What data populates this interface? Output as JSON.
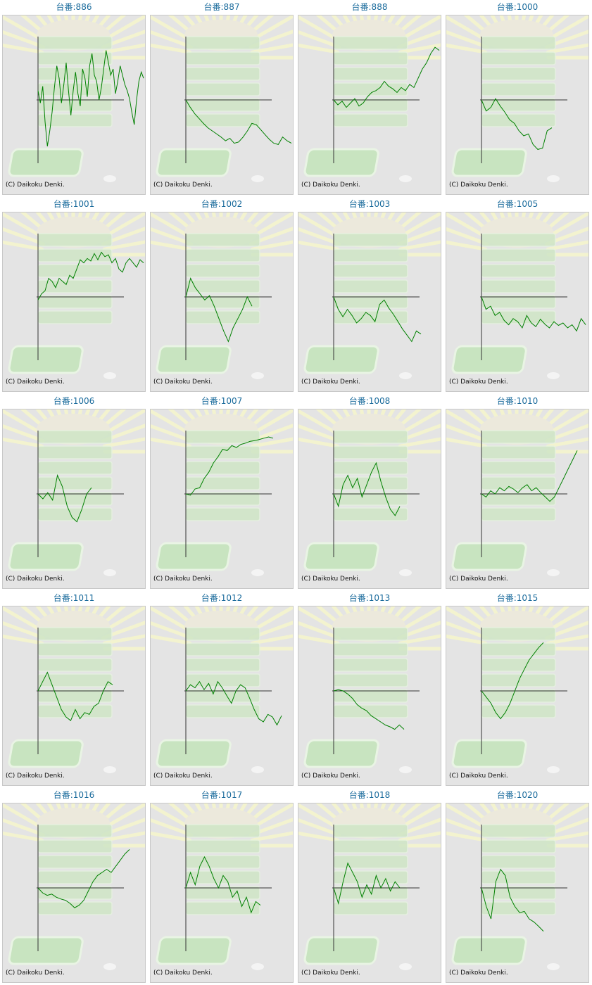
{
  "copyright": "(C) Daikoku Denki.",
  "colors": {
    "line": "#008000",
    "axis": "#333333",
    "title": "#1a6b9c",
    "panel": "#e4e4e4"
  },
  "chart_data": [
    {
      "type": "line",
      "title": "台番:886",
      "y": [
        0.15,
        -0.05,
        0.22,
        -0.35,
        -0.75,
        -0.5,
        -0.2,
        0.2,
        0.55,
        0.35,
        -0.05,
        0.25,
        0.6,
        0.15,
        -0.25,
        0.15,
        0.45,
        0.1,
        -0.1,
        0.5,
        0.35,
        0.05,
        0.55,
        0.75,
        0.4,
        0.3,
        0.0,
        0.2,
        0.5,
        0.8,
        0.6,
        0.4,
        0.5,
        0.1,
        0.3,
        0.55,
        0.4,
        0.25,
        0.15,
        0.02,
        -0.2,
        -0.4,
        0.0,
        0.3,
        0.45,
        0.35
      ]
    },
    {
      "type": "line",
      "title": "台番:887",
      "y": [
        0.0,
        -0.12,
        -0.22,
        -0.3,
        -0.38,
        -0.45,
        -0.5,
        -0.55,
        -0.6,
        -0.66,
        -0.62,
        -0.7,
        -0.68,
        -0.6,
        -0.5,
        -0.38,
        -0.4,
        -0.48,
        -0.56,
        -0.64,
        -0.7,
        -0.72,
        -0.6,
        -0.66,
        -0.7
      ]
    },
    {
      "type": "line",
      "title": "台番:888",
      "y": [
        0.0,
        -0.08,
        -0.02,
        -0.12,
        -0.05,
        0.02,
        -0.1,
        -0.05,
        0.05,
        0.12,
        0.15,
        0.2,
        0.3,
        0.22,
        0.18,
        0.12,
        0.2,
        0.15,
        0.25,
        0.2,
        0.35,
        0.5,
        0.6,
        0.75,
        0.85,
        0.8
      ]
    },
    {
      "type": "line",
      "title": "台番:1000",
      "y": [
        0.0,
        -0.18,
        -0.12,
        0.02,
        -0.1,
        -0.2,
        -0.32,
        -0.38,
        -0.5,
        -0.58,
        -0.55,
        -0.72,
        -0.8,
        -0.78,
        -0.5,
        -0.45
      ]
    },
    {
      "type": "line",
      "title": "台番:1001",
      "y": [
        -0.05,
        0.05,
        0.1,
        0.3,
        0.25,
        0.15,
        0.3,
        0.25,
        0.2,
        0.35,
        0.3,
        0.45,
        0.6,
        0.55,
        0.62,
        0.58,
        0.7,
        0.6,
        0.72,
        0.65,
        0.68,
        0.55,
        0.62,
        0.45,
        0.4,
        0.55,
        0.62,
        0.55,
        0.48,
        0.6,
        0.55
      ]
    },
    {
      "type": "line",
      "title": "台番:1002",
      "y": [
        0.0,
        0.3,
        0.15,
        0.05,
        -0.05,
        0.02,
        -0.15,
        -0.35,
        -0.55,
        -0.72,
        -0.5,
        -0.35,
        -0.2,
        0.0,
        -0.15
      ]
    },
    {
      "type": "line",
      "title": "台番:1003",
      "y": [
        0.0,
        -0.2,
        -0.32,
        -0.2,
        -0.3,
        -0.42,
        -0.35,
        -0.25,
        -0.3,
        -0.4,
        -0.12,
        -0.05,
        -0.18,
        -0.28,
        -0.4,
        -0.52,
        -0.62,
        -0.72,
        -0.55,
        -0.6
      ]
    },
    {
      "type": "line",
      "title": "台番:1005",
      "y": [
        0.0,
        -0.2,
        -0.15,
        -0.3,
        -0.25,
        -0.38,
        -0.45,
        -0.35,
        -0.4,
        -0.5,
        -0.3,
        -0.42,
        -0.48,
        -0.36,
        -0.44,
        -0.5,
        -0.4,
        -0.46,
        -0.42,
        -0.5,
        -0.45,
        -0.55,
        -0.35,
        -0.45
      ]
    },
    {
      "type": "line",
      "title": "台番:1006",
      "y": [
        0.0,
        -0.08,
        0.02,
        -0.1,
        0.3,
        0.12,
        -0.2,
        -0.38,
        -0.45,
        -0.25,
        0.0,
        0.1
      ]
    },
    {
      "type": "line",
      "title": "台番:1007",
      "y": [
        0.0,
        -0.02,
        0.08,
        0.1,
        0.25,
        0.35,
        0.5,
        0.6,
        0.72,
        0.7,
        0.78,
        0.75,
        0.8,
        0.82,
        0.85,
        0.86,
        0.88,
        0.9,
        0.92,
        0.9
      ]
    },
    {
      "type": "line",
      "title": "台番:1008",
      "y": [
        0.0,
        -0.2,
        0.15,
        0.3,
        0.1,
        0.25,
        -0.05,
        0.15,
        0.35,
        0.5,
        0.2,
        -0.05,
        -0.25,
        -0.35,
        -0.2
      ]
    },
    {
      "type": "line",
      "title": "台番:1010",
      "y": [
        0.0,
        -0.05,
        0.05,
        0.0,
        0.1,
        0.05,
        0.12,
        0.08,
        0.02,
        0.1,
        0.15,
        0.05,
        0.1,
        0.02,
        -0.05,
        -0.12,
        -0.05,
        0.1,
        0.25,
        0.4,
        0.55,
        0.7
      ]
    },
    {
      "type": "line",
      "title": "台番:1011",
      "y": [
        0.0,
        0.15,
        0.3,
        0.1,
        -0.1,
        -0.3,
        -0.42,
        -0.48,
        -0.3,
        -0.45,
        -0.35,
        -0.38,
        -0.25,
        -0.2,
        0.0,
        0.15,
        0.1
      ]
    },
    {
      "type": "line",
      "title": "台番:1012",
      "y": [
        0.0,
        0.1,
        0.05,
        0.15,
        0.02,
        0.12,
        -0.05,
        0.15,
        0.05,
        -0.08,
        -0.2,
        0.0,
        0.1,
        0.05,
        -0.12,
        -0.3,
        -0.45,
        -0.5,
        -0.38,
        -0.42,
        -0.55,
        -0.4
      ]
    },
    {
      "type": "line",
      "title": "台番:1013",
      "y": [
        0.0,
        0.02,
        0.0,
        -0.05,
        -0.12,
        -0.22,
        -0.28,
        -0.32,
        -0.4,
        -0.45,
        -0.5,
        -0.55,
        -0.58,
        -0.62,
        -0.55,
        -0.62
      ]
    },
    {
      "type": "line",
      "title": "台番:1015",
      "y": [
        0.0,
        -0.1,
        -0.2,
        -0.35,
        -0.45,
        -0.35,
        -0.2,
        0.0,
        0.2,
        0.35,
        0.5,
        0.6,
        0.7,
        0.78
      ]
    },
    {
      "type": "line",
      "title": "台番:1016",
      "y": [
        0.0,
        -0.08,
        -0.12,
        -0.1,
        -0.15,
        -0.18,
        -0.2,
        -0.25,
        -0.32,
        -0.28,
        -0.2,
        -0.05,
        0.1,
        0.2,
        0.25,
        0.3,
        0.25,
        0.35,
        0.45,
        0.55,
        0.62
      ]
    },
    {
      "type": "line",
      "title": "台番:1017",
      "y": [
        0.0,
        0.25,
        0.05,
        0.35,
        0.5,
        0.35,
        0.15,
        0.0,
        0.2,
        0.1,
        -0.15,
        -0.05,
        -0.3,
        -0.15,
        -0.4,
        -0.22,
        -0.28
      ]
    },
    {
      "type": "line",
      "title": "台番:1018",
      "y": [
        0.0,
        -0.25,
        0.1,
        0.4,
        0.25,
        0.1,
        -0.15,
        0.05,
        -0.1,
        0.2,
        0.0,
        0.15,
        -0.05,
        0.1,
        0.0
      ]
    },
    {
      "type": "line",
      "title": "台番:1020",
      "y": [
        0.0,
        -0.3,
        -0.5,
        0.1,
        0.3,
        0.2,
        -0.15,
        -0.3,
        -0.4,
        -0.38,
        -0.5,
        -0.55,
        -0.62,
        -0.7
      ]
    }
  ]
}
